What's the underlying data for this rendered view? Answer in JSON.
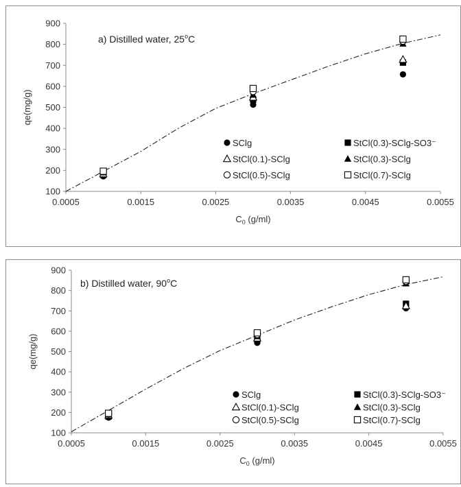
{
  "chart_data": [
    {
      "type": "scatter",
      "title": "a) Distilled water, 25",
      "title_sup": "o",
      "title_tail": "C",
      "xlabel": "C",
      "xlabel_sub": "0",
      "xlabel_tail": " (g/ml)",
      "ylabel": "qe(mg/g)",
      "xlim": [
        0.0005,
        0.0055
      ],
      "ylim": [
        100,
        900
      ],
      "xticks": [
        0.0005,
        0.0015,
        0.0025,
        0.0035,
        0.0045,
        0.0055
      ],
      "xtick_labels": [
        "0.0005",
        "0.0015",
        "0.0025",
        "0.0035",
        "0.0045",
        "0.0055"
      ],
      "yticks": [
        100,
        200,
        300,
        400,
        500,
        600,
        700,
        800,
        900
      ],
      "ytick_labels": [
        "100",
        "200",
        "300",
        "400",
        "500",
        "600",
        "700",
        "800",
        "900"
      ],
      "grid": false,
      "legend_position": "lower-right",
      "series": [
        {
          "name": "SClg",
          "marker": "circle-filled",
          "x": [
            0.001,
            0.003,
            0.005
          ],
          "y": [
            172,
            513,
            657
          ]
        },
        {
          "name": "StCl(0.3)-SClg-SO3⁻",
          "marker": "square-filled",
          "x": [
            0.001,
            0.003,
            0.005
          ],
          "y": [
            178,
            537,
            713
          ]
        },
        {
          "name": "StCl(0.1)-SClg",
          "marker": "triangle-open",
          "x": [
            0.001,
            0.003,
            0.005
          ],
          "y": [
            183,
            548,
            728
          ]
        },
        {
          "name": "StCl(0.3)-SClg",
          "marker": "triangle-filled",
          "x": [
            0.001,
            0.003,
            0.005
          ],
          "y": [
            190,
            560,
            803
          ]
        },
        {
          "name": "StCl(0.5)-SClg",
          "marker": "circle-open",
          "x": [
            0.001,
            0.003,
            0.005
          ],
          "y": [
            193,
            575,
            815
          ]
        },
        {
          "name": "StCl(0.7)-SClg",
          "marker": "square-open",
          "x": [
            0.001,
            0.003,
            0.005
          ],
          "y": [
            196,
            590,
            825
          ]
        }
      ],
      "fit_curve": {
        "style": "dash-dot",
        "x": [
          0.0005,
          0.001,
          0.0015,
          0.002,
          0.0025,
          0.003,
          0.0035,
          0.004,
          0.0045,
          0.005,
          0.0055
        ],
        "y": [
          100,
          195,
          290,
          400,
          495,
          565,
          630,
          695,
          755,
          805,
          845
        ]
      }
    },
    {
      "type": "scatter",
      "title": "b) Distilled water, 90",
      "title_sup": "o",
      "title_tail": "C",
      "xlabel": "C",
      "xlabel_sub": "0",
      "xlabel_tail": " (g/ml)",
      "ylabel": "qe(mg/g)",
      "xlim": [
        0.0005,
        0.0055
      ],
      "ylim": [
        100,
        900
      ],
      "xticks": [
        0.0005,
        0.0015,
        0.0025,
        0.0035,
        0.0045,
        0.0055
      ],
      "xtick_labels": [
        "0.0005",
        "0.0015",
        "0.0025",
        "0.0035",
        "0.0045",
        "0.0055"
      ],
      "yticks": [
        100,
        200,
        300,
        400,
        500,
        600,
        700,
        800,
        900
      ],
      "ytick_labels": [
        "100",
        "200",
        "300",
        "400",
        "500",
        "600",
        "700",
        "800",
        "900"
      ],
      "grid": false,
      "legend_position": "lower-right",
      "series": [
        {
          "name": "SClg",
          "marker": "circle-filled",
          "x": [
            0.001,
            0.003,
            0.005
          ],
          "y": [
            175,
            543,
            713
          ]
        },
        {
          "name": "StCl(0.3)-SClg-SO3⁻",
          "marker": "square-filled",
          "x": [
            0.001,
            0.003,
            0.005
          ],
          "y": [
            180,
            558,
            735
          ]
        },
        {
          "name": "StCl(0.1)-SClg",
          "marker": "triangle-open",
          "x": [
            0.001,
            0.003,
            0.005
          ],
          "y": [
            186,
            566,
            725
          ]
        },
        {
          "name": "StCl(0.3)-SClg",
          "marker": "triangle-filled",
          "x": [
            0.001,
            0.003,
            0.005
          ],
          "y": [
            190,
            575,
            835
          ]
        },
        {
          "name": "StCl(0.5)-SClg",
          "marker": "circle-open",
          "x": [
            0.001,
            0.003,
            0.005
          ],
          "y": [
            192,
            583,
            845
          ]
        },
        {
          "name": "StCl(0.7)-SClg",
          "marker": "square-open",
          "x": [
            0.001,
            0.003,
            0.005
          ],
          "y": [
            196,
            592,
            853
          ]
        }
      ],
      "fit_curve": {
        "style": "dash-dot",
        "x": [
          0.0005,
          0.001,
          0.0015,
          0.002,
          0.0025,
          0.003,
          0.0035,
          0.004,
          0.0045,
          0.005,
          0.0055
        ],
        "y": [
          105,
          210,
          315,
          415,
          505,
          580,
          655,
          720,
          780,
          830,
          868
        ]
      }
    }
  ]
}
